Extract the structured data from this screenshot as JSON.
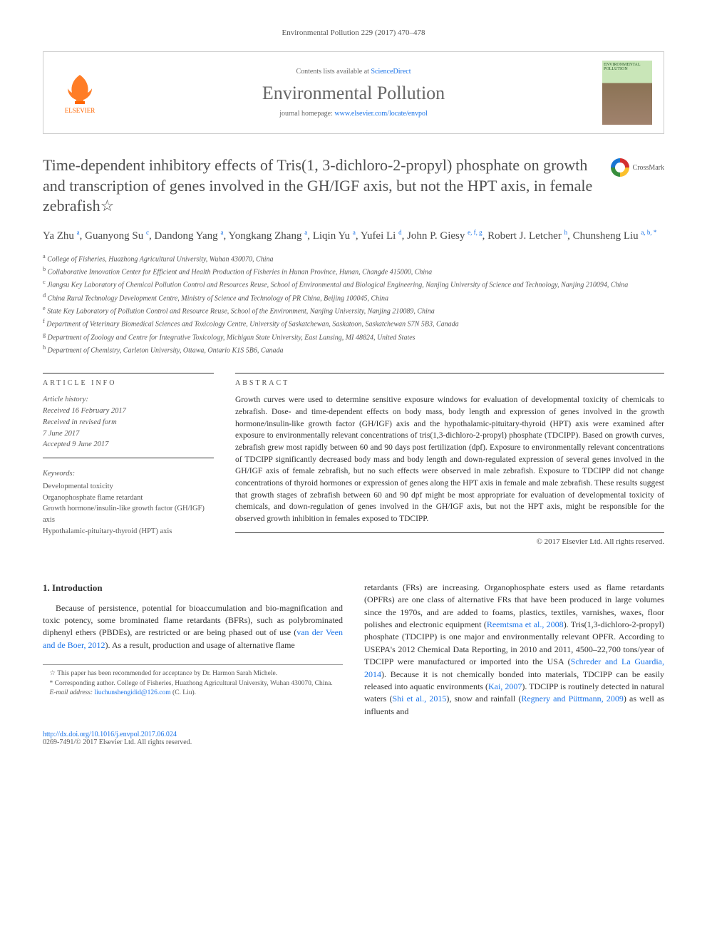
{
  "running_head": "Environmental Pollution 229 (2017) 470–478",
  "header": {
    "contents_prefix": "Contents lists available at ",
    "contents_link": "ScienceDirect",
    "journal_name": "Environmental Pollution",
    "homepage_prefix": "journal homepage: ",
    "homepage_link": "www.elsevier.com/locate/envpol",
    "publisher_label": "ELSEVIER",
    "cover_label": "ENVIRONMENTAL POLLUTION"
  },
  "crossmark_label": "CrossMark",
  "title": "Time-dependent inhibitory effects of Tris(1, 3-dichloro-2-propyl) phosphate on growth and transcription of genes involved in the GH/IGF axis, but not the HPT axis, in female zebrafish☆",
  "authors_html": "Ya Zhu <sup>a</sup>, Guanyong Su <sup>c</sup>, Dandong Yang <sup>a</sup>, Yongkang Zhang <sup>a</sup>, Liqin Yu <sup>a</sup>, Yufei Li <sup>d</sup>, John P. Giesy <sup>e, f, g</sup>, Robert J. Letcher <sup>h</sup>, Chunsheng Liu <sup>a, b, *</sup>",
  "affiliations": [
    {
      "sup": "a",
      "text": "College of Fisheries, Huazhong Agricultural University, Wuhan 430070, China"
    },
    {
      "sup": "b",
      "text": "Collaborative Innovation Center for Efficient and Health Production of Fisheries in Hunan Province, Hunan, Changde 415000, China"
    },
    {
      "sup": "c",
      "text": "Jiangsu Key Laboratory of Chemical Pollution Control and Resources Reuse, School of Environmental and Biological Engineering, Nanjing University of Science and Technology, Nanjing 210094, China"
    },
    {
      "sup": "d",
      "text": "China Rural Technology Development Centre, Ministry of Science and Technology of PR China, Beijing 100045, China"
    },
    {
      "sup": "e",
      "text": "State Key Laboratory of Pollution Control and Resource Reuse, School of the Environment, Nanjing University, Nanjing 210089, China"
    },
    {
      "sup": "f",
      "text": "Department of Veterinary Biomedical Sciences and Toxicology Centre, University of Saskatchewan, Saskatoon, Saskatchewan S7N 5B3, Canada"
    },
    {
      "sup": "g",
      "text": "Department of Zoology and Centre for Integrative Toxicology, Michigan State University, East Lansing, MI 48824, United States"
    },
    {
      "sup": "h",
      "text": "Department of Chemistry, Carleton University, Ottawa, Ontario K1S 5B6, Canada"
    }
  ],
  "article_info": {
    "label": "ARTICLE INFO",
    "history_label": "Article history:",
    "received": "Received 16 February 2017",
    "revised_l1": "Received in revised form",
    "revised_l2": "7 June 2017",
    "accepted": "Accepted 9 June 2017",
    "keywords_label": "Keywords:",
    "keywords": [
      "Developmental toxicity",
      "Organophosphate flame retardant",
      "Growth hormone/insulin-like growth factor (GH/IGF) axis",
      "Hypothalamic-pituitary-thyroid (HPT) axis"
    ]
  },
  "abstract": {
    "label": "ABSTRACT",
    "text": "Growth curves were used to determine sensitive exposure windows for evaluation of developmental toxicity of chemicals to zebrafish. Dose- and time-dependent effects on body mass, body length and expression of genes involved in the growth hormone/insulin-like growth factor (GH/IGF) axis and the hypothalamic-pituitary-thyroid (HPT) axis were examined after exposure to environmentally relevant concentrations of tris(1,3-dichloro-2-propyl) phosphate (TDCIPP). Based on growth curves, zebrafish grew most rapidly between 60 and 90 days post fertilization (dpf). Exposure to environmentally relevant concentrations of TDCIPP significantly decreased body mass and body length and down-regulated expression of several genes involved in the GH/IGF axis of female zebrafish, but no such effects were observed in male zebrafish. Exposure to TDCIPP did not change concentrations of thyroid hormones or expression of genes along the HPT axis in female and male zebrafish. These results suggest that growth stages of zebrafish between 60 and 90 dpf might be most appropriate for evaluation of developmental toxicity of chemicals, and down-regulation of genes involved in the GH/IGF axis, but not the HPT axis, might be responsible for the observed growth inhibition in females exposed to TDCIPP.",
    "copyright": "© 2017 Elsevier Ltd. All rights reserved."
  },
  "intro": {
    "heading": "1. Introduction",
    "p1_a": "Because of persistence, potential for bioaccumulation and bio-magnification and toxic potency, some brominated flame retardants (BFRs), such as polybrominated diphenyl ethers (PBDEs), are restricted or are being phased out of use (",
    "p1_ref1": "van der Veen and de Boer, 2012",
    "p1_b": "). As a result, production and usage of alternative flame",
    "p2_a": "retardants (FRs) are increasing. Organophosphate esters used as flame retardants (OPFRs) are one class of alternative FRs that have been produced in large volumes since the 1970s, and are added to foams, plastics, textiles, varnishes, waxes, floor polishes and electronic equipment (",
    "p2_ref1": "Reemtsma et al., 2008",
    "p2_b": "). Tris(1,3-dichloro-2-propyl) phosphate (TDCIPP) is one major and environmentally relevant OPFR. According to USEPA's 2012 Chemical Data Reporting, in 2010 and 2011, 4500–22,700 tons/year of TDCIPP were manufactured or imported into the USA (",
    "p2_ref2": "Schreder and La Guardia, 2014",
    "p2_c": "). Because it is not chemically bonded into materials, TDCIPP can be easily released into aquatic environments (",
    "p2_ref3": "Kai, 2007",
    "p2_d": "). TDCIPP is routinely detected in natural waters (",
    "p2_ref4": "Shi et al., 2015",
    "p2_e": "), snow and rainfall (",
    "p2_ref5": "Regnery and Püttmann, 2009",
    "p2_f": ") as well as influents and"
  },
  "footnotes": {
    "note1": "☆ This paper has been recommended for acceptance by Dr. Harmon Sarah Michele.",
    "note2": "* Corresponding author. College of Fisheries, Huazhong Agricultural University, Wuhan 430070, China.",
    "email_label": "E-mail address: ",
    "email": "liuchunshengidid@126.com",
    "email_suffix": " (C. Liu)."
  },
  "footer": {
    "doi": "http://dx.doi.org/10.1016/j.envpol.2017.06.024",
    "issn_line": "0269-7491/© 2017 Elsevier Ltd. All rights reserved."
  },
  "colors": {
    "link": "#1a73e8",
    "text": "#333333",
    "muted": "#555555",
    "border": "#cccccc",
    "elsevier": "#ff6600"
  }
}
